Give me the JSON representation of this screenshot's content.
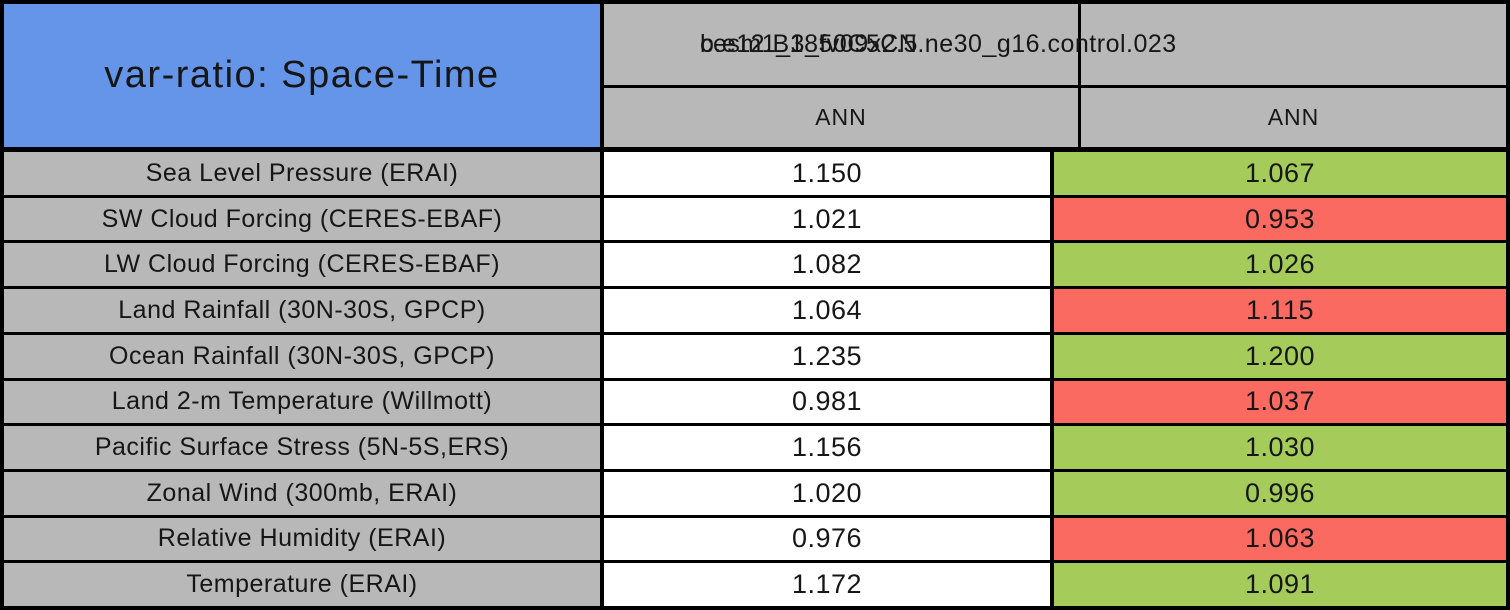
{
  "colors": {
    "header_blue": "#6495E8",
    "cell_gray": "#B8B8B8",
    "good_green": "#A5CC5A",
    "bad_red": "#FA6A60",
    "border_black": "#000000",
    "value_white": "#FFFFFF"
  },
  "chart_data": {
    "type": "table",
    "title": "var-ratio: Space-Time",
    "header": {
      "test_case": "cesm1_3_fv09x2.5",
      "control_case": "b.e12.B1850C5CN.ne30_g16.control.023",
      "season_test": "ANN",
      "season_control": "ANN"
    },
    "rows": [
      {
        "label": "Sea Level Pressure (ERAI)",
        "test": "1.150",
        "control": "1.067",
        "flag": "green"
      },
      {
        "label": "SW Cloud Forcing (CERES-EBAF)",
        "test": "1.021",
        "control": "0.953",
        "flag": "red"
      },
      {
        "label": "LW Cloud Forcing (CERES-EBAF)",
        "test": "1.082",
        "control": "1.026",
        "flag": "green"
      },
      {
        "label": "Land Rainfall (30N-30S, GPCP)",
        "test": "1.064",
        "control": "1.115",
        "flag": "red"
      },
      {
        "label": "Ocean Rainfall (30N-30S, GPCP)",
        "test": "1.235",
        "control": "1.200",
        "flag": "green"
      },
      {
        "label": "Land 2-m Temperature (Willmott)",
        "test": "0.981",
        "control": "1.037",
        "flag": "red"
      },
      {
        "label": "Pacific Surface Stress (5N-5S,ERS)",
        "test": "1.156",
        "control": "1.030",
        "flag": "green"
      },
      {
        "label": "Zonal Wind (300mb, ERAI)",
        "test": "1.020",
        "control": "0.996",
        "flag": "green"
      },
      {
        "label": "Relative Humidity (ERAI)",
        "test": "0.976",
        "control": "1.063",
        "flag": "red"
      },
      {
        "label": "Temperature (ERAI)",
        "test": "1.172",
        "control": "1.091",
        "flag": "green"
      }
    ]
  }
}
